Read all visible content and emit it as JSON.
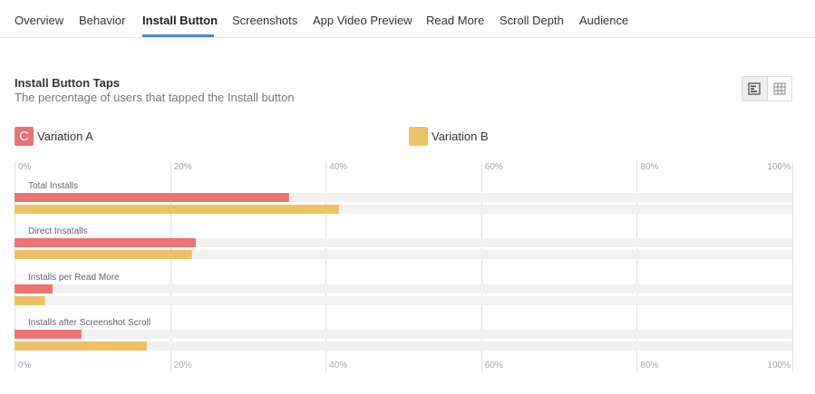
{
  "tabs": [
    {
      "label": "Overview",
      "active": false
    },
    {
      "label": "Behavior",
      "active": false
    },
    {
      "label": "Install Button",
      "active": true
    },
    {
      "label": "Screenshots",
      "active": false
    },
    {
      "label": "App Video Preview",
      "active": false
    },
    {
      "label": "Read More",
      "active": false
    },
    {
      "label": "Scroll Depth",
      "active": false
    },
    {
      "label": "Audience",
      "active": false
    }
  ],
  "colors": {
    "variation_a": "#ec7373",
    "variation_b": "#f0c065",
    "accent": "#4a86e8",
    "track": "#f1f1f1",
    "grid": "#e2e2e2"
  },
  "legend": [
    {
      "label": "Variation A",
      "icon_letter": "C",
      "color_key": "variation_a"
    },
    {
      "label": "Variation B",
      "icon_letter": "",
      "color_key": "variation_b"
    }
  ],
  "view_toggle": {
    "icons": [
      "bar-chart-view-icon",
      "table-view-icon"
    ],
    "selected": "bar-chart-view-icon"
  },
  "chart_data": {
    "type": "bar",
    "orientation": "horizontal",
    "title": "Install Button Taps",
    "subtitle": "The percentage of users that tapped the Install button",
    "categories": [
      "Total Installs",
      "Direct Ins​atalls",
      "Installs per Read More",
      "Installs after Screenshot Scroll"
    ],
    "series": [
      {
        "name": "Variation A",
        "values": [
          35.3,
          23.3,
          4.9,
          8.6
        ]
      },
      {
        "name": "Variation B",
        "values": [
          41.7,
          22.8,
          3.9,
          17.0
        ]
      }
    ],
    "xlim": [
      0,
      100
    ],
    "x_ticks": [
      "0%",
      "20%",
      "40%",
      "60%",
      "80%",
      "100%"
    ],
    "grid": true,
    "legend_position": "top"
  }
}
